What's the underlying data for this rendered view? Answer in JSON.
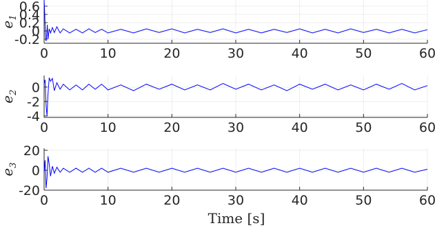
{
  "chart_data": [
    {
      "type": "line",
      "ylabel": "e",
      "ylabel_sub": "1",
      "xlim": [
        0,
        60
      ],
      "ylim": [
        -0.3,
        0.75
      ],
      "xticks": [
        "0",
        "10",
        "20",
        "30",
        "40",
        "50",
        "60"
      ],
      "yticks": [
        "-0.2",
        "0",
        "0.2",
        "0.4",
        "0.6"
      ],
      "grid": true,
      "series": [
        {
          "color": "#0000ff",
          "x": [
            0,
            0.1,
            0.2,
            0.3,
            0.4,
            0.5,
            0.6,
            0.8,
            1.0,
            1.3,
            1.6,
            2.0,
            2.5,
            3.0,
            4,
            5,
            6,
            7,
            8,
            9,
            10,
            12,
            14,
            16,
            18,
            20,
            22,
            24,
            26,
            28,
            30,
            32,
            34,
            36,
            38,
            40,
            42,
            44,
            46,
            48,
            50,
            52,
            54,
            56,
            58,
            60
          ],
          "y": [
            0.75,
            0.4,
            -0.1,
            -0.25,
            -0.1,
            0.15,
            -0.2,
            0.05,
            -0.05,
            0.08,
            -0.04,
            0.1,
            -0.05,
            0.05,
            -0.05,
            0.04,
            -0.05,
            0.05,
            -0.04,
            0.04,
            -0.05,
            0.04,
            -0.05,
            0.05,
            -0.04,
            0.05,
            -0.05,
            0.04,
            -0.04,
            0.05,
            -0.05,
            0.04,
            -0.05,
            0.04,
            -0.04,
            0.05,
            -0.05,
            0.04,
            -0.05,
            0.05,
            -0.04,
            0.04,
            -0.05,
            0.04,
            -0.05,
            0.03
          ]
        }
      ]
    },
    {
      "type": "line",
      "ylabel": "e",
      "ylabel_sub": "2",
      "xlim": [
        0,
        60
      ],
      "ylim": [
        -4.2,
        1.6
      ],
      "xticks": [
        "0",
        "10",
        "20",
        "30",
        "40",
        "50",
        "60"
      ],
      "yticks": [
        "-4",
        "-2",
        "0"
      ],
      "grid": true,
      "series": [
        {
          "color": "#0000ff",
          "x": [
            0,
            0.15,
            0.3,
            0.45,
            0.6,
            0.8,
            1.0,
            1.3,
            1.6,
            2.0,
            2.5,
            3.0,
            4,
            5,
            6,
            7,
            8,
            9,
            10,
            12,
            14,
            16,
            18,
            20,
            22,
            24,
            26,
            28,
            30,
            32,
            34,
            36,
            38,
            40,
            42,
            44,
            46,
            48,
            50,
            52,
            54,
            56,
            58,
            60
          ],
          "y": [
            0.5,
            1.0,
            -2.5,
            -4.0,
            -1.0,
            1.3,
            0.8,
            1.2,
            -0.5,
            0.6,
            -0.3,
            0.4,
            -0.4,
            0.3,
            -0.4,
            0.4,
            -0.3,
            0.4,
            -0.4,
            0.3,
            -0.5,
            0.4,
            -0.3,
            0.4,
            -0.4,
            0.3,
            -0.4,
            0.5,
            -0.3,
            0.4,
            -0.4,
            0.3,
            -0.5,
            0.4,
            -0.3,
            0.4,
            -0.4,
            0.3,
            -0.4,
            0.4,
            -0.3,
            0.5,
            -0.4,
            0.2
          ]
        }
      ]
    },
    {
      "type": "line",
      "ylabel": "e",
      "ylabel_sub": "3",
      "xlim": [
        0,
        60
      ],
      "ylim": [
        -20,
        22
      ],
      "xticks": [
        "0",
        "10",
        "20",
        "30",
        "40",
        "50",
        "60"
      ],
      "yticks": [
        "-20",
        "0",
        "20"
      ],
      "grid": true,
      "series": [
        {
          "color": "#0000ff",
          "x": [
            0,
            0.15,
            0.3,
            0.45,
            0.6,
            0.8,
            1.0,
            1.3,
            1.6,
            2.0,
            2.5,
            3.0,
            4,
            5,
            6,
            7,
            8,
            9,
            10,
            12,
            14,
            16,
            18,
            20,
            22,
            24,
            26,
            28,
            30,
            32,
            34,
            36,
            38,
            40,
            42,
            44,
            46,
            48,
            50,
            52,
            54,
            56,
            58,
            60
          ],
          "y": [
            -2,
            10,
            -18,
            -8,
            14,
            6,
            -6,
            4,
            -3,
            3,
            -2,
            2,
            -2,
            2,
            -2,
            2,
            -2,
            2,
            -2,
            2,
            -2,
            2,
            -2,
            2,
            -2,
            2,
            -2,
            2,
            -2,
            2,
            -2,
            2,
            -2,
            2,
            -2,
            2,
            -2,
            2,
            -2,
            2,
            -2,
            2,
            -2,
            1
          ]
        }
      ]
    }
  ],
  "xlabel": "Time [s]"
}
